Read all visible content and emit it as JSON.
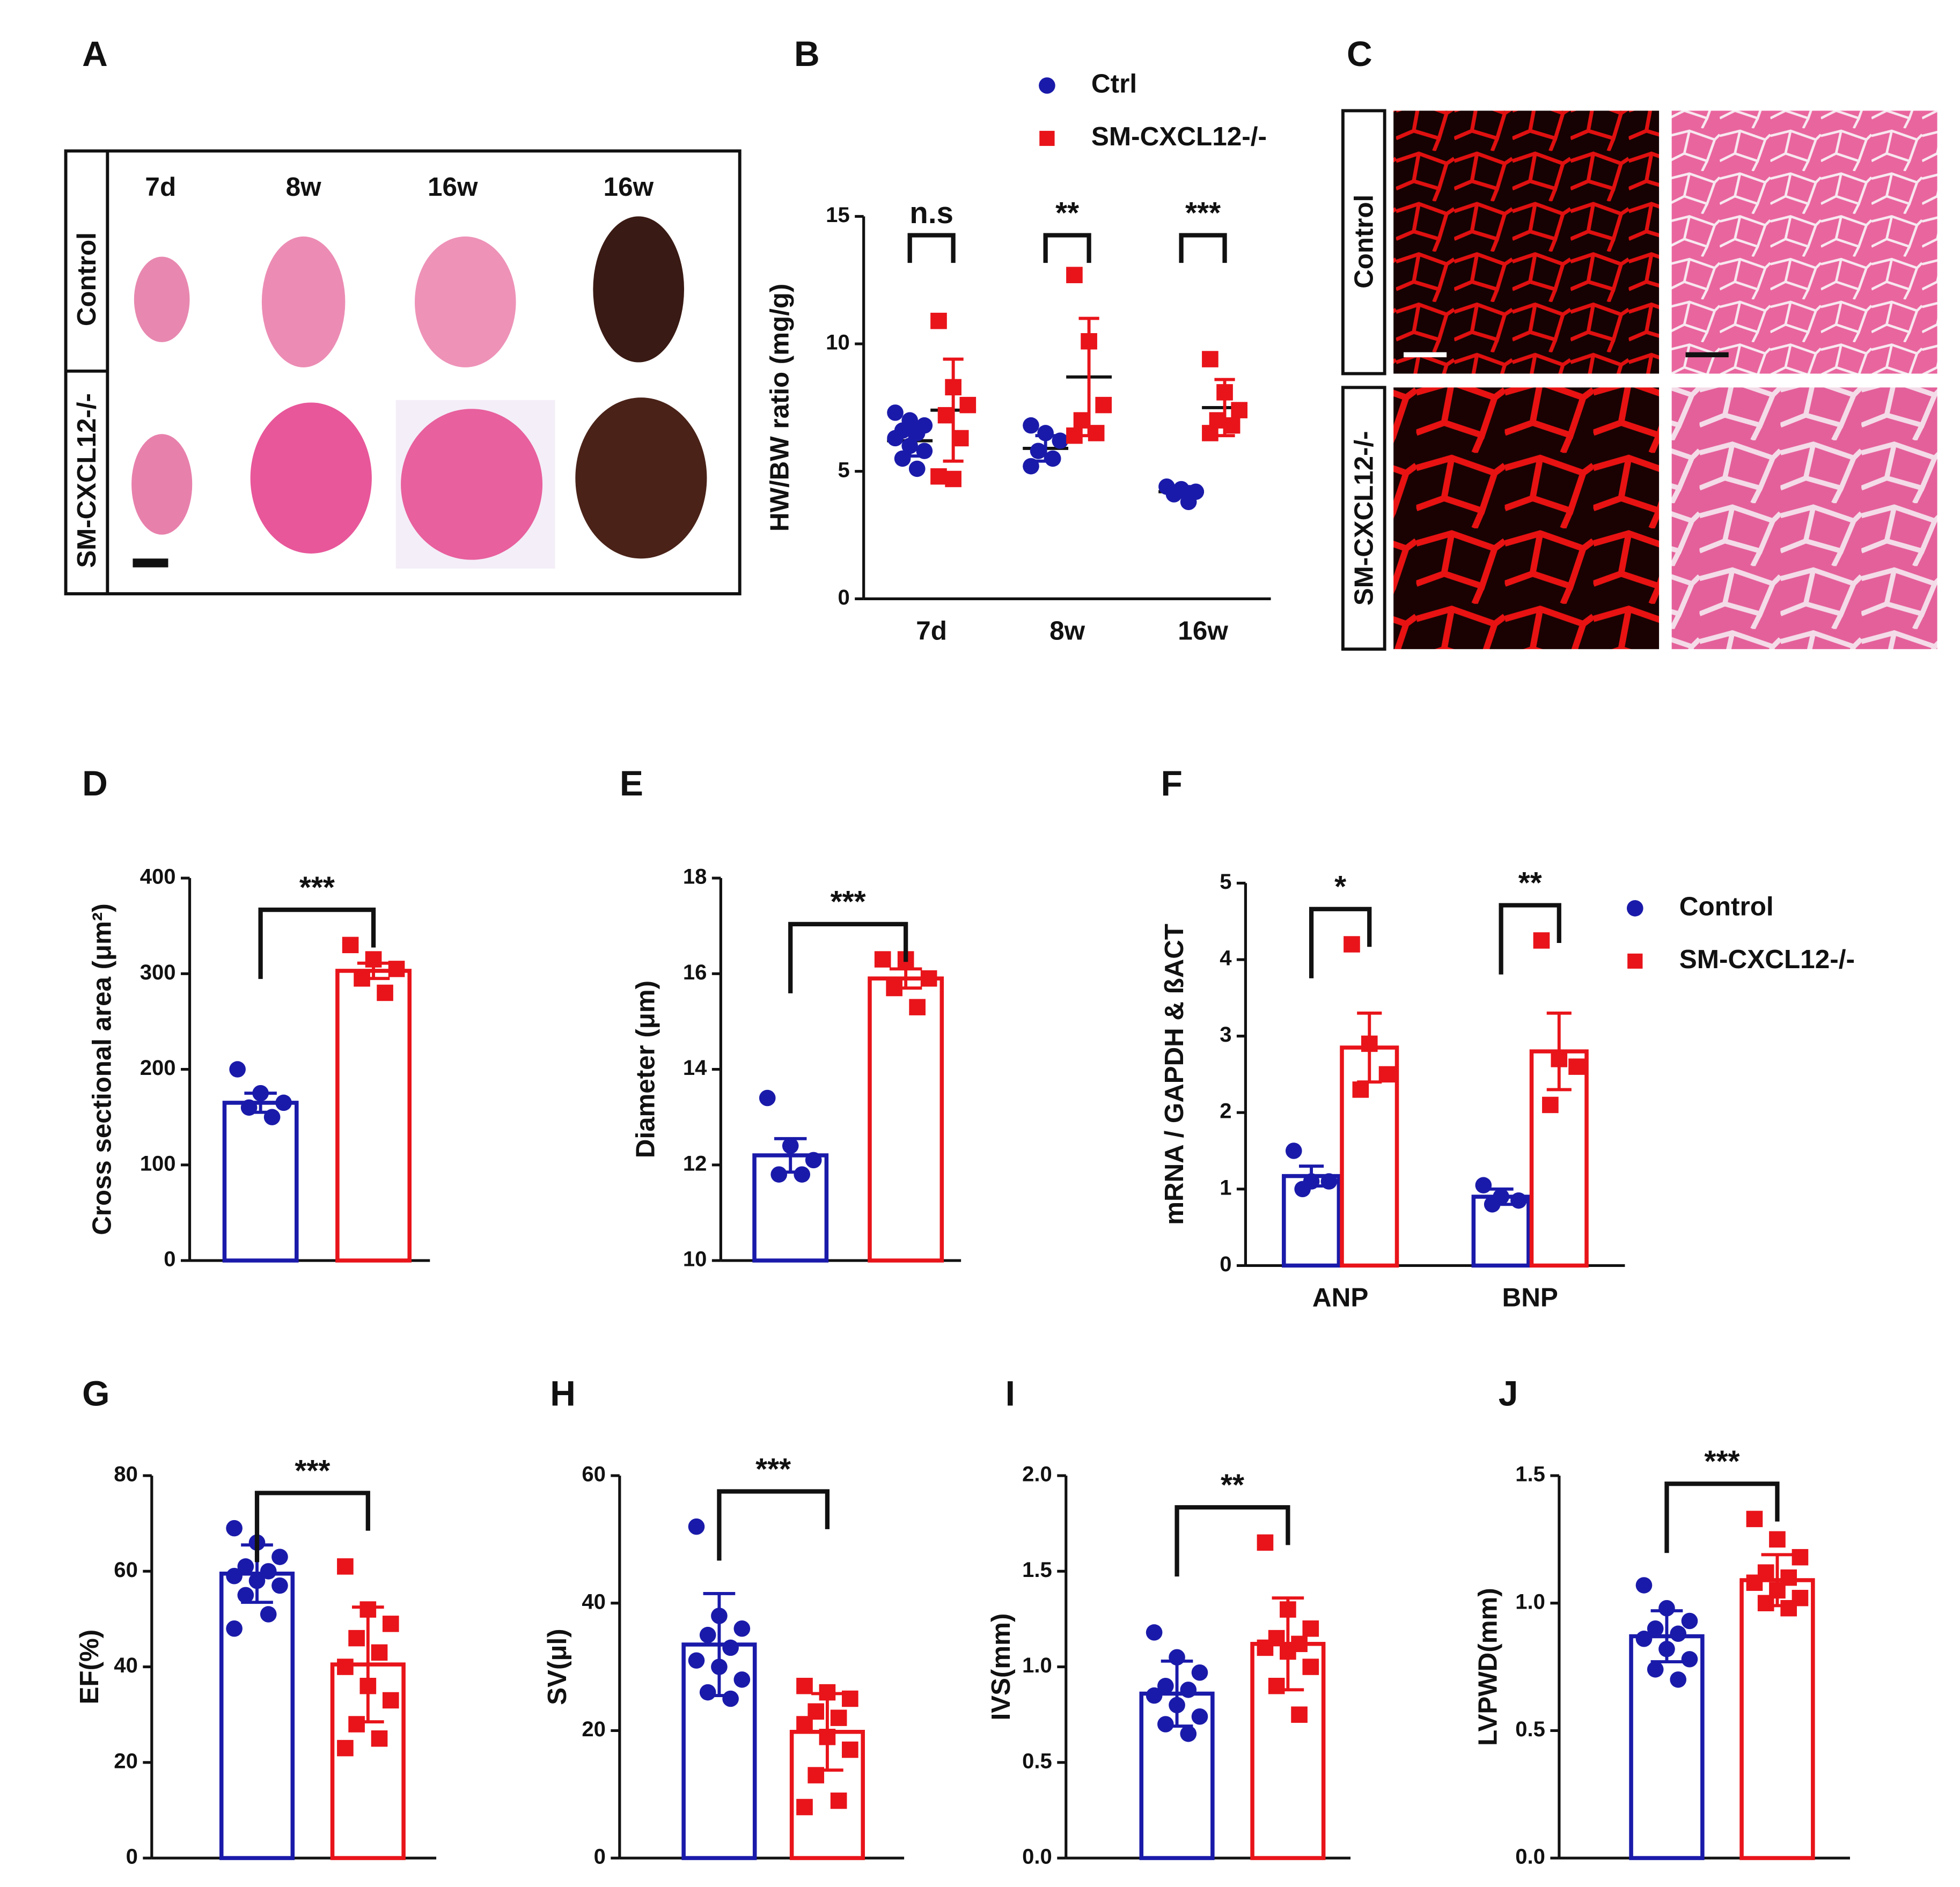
{
  "chart_data": [
    {
      "panel": "B",
      "type": "dot",
      "categories": [
        "7d",
        "8w",
        "16w"
      ],
      "ylabel": "HW/BW ratio (mg/g)",
      "ylim": [
        0,
        15
      ],
      "yticks": [
        0,
        5,
        10,
        15
      ],
      "legend": true,
      "annotations": [
        "n.s",
        "**",
        "***"
      ],
      "series": [
        {
          "name": "Ctrl",
          "color": "#1a1aaa",
          "marker": "circle",
          "values": [
            6.2,
            5.9,
            4.2
          ],
          "errors": [
            0.6,
            0.5,
            0.2
          ],
          "points": [
            [
              7.3,
              7.0,
              6.8,
              6.6,
              6.5,
              6.3,
              6.0,
              5.8,
              5.5,
              5.1
            ],
            [
              6.8,
              6.5,
              6.2,
              5.8,
              5.5,
              5.2
            ],
            [
              4.4,
              4.3,
              4.2,
              4.1,
              3.8
            ]
          ]
        },
        {
          "name": "SM-CXCL12-/-",
          "color": "#e8141a",
          "marker": "square",
          "values": [
            7.4,
            8.7,
            7.5
          ],
          "errors": [
            2.0,
            2.3,
            1.1
          ],
          "points": [
            [
              10.9,
              8.3,
              7.6,
              7.2,
              6.3,
              4.8,
              4.7
            ],
            [
              12.7,
              10.1,
              7.6,
              7.0,
              6.5,
              6.4
            ],
            [
              9.4,
              8.1,
              7.4,
              7.0,
              6.8,
              6.5
            ]
          ]
        }
      ]
    },
    {
      "panel": "D",
      "type": "bar",
      "ylabel": "Cross sectional area (μm²)",
      "ylim": [
        0,
        400
      ],
      "yticks": [
        0,
        100,
        200,
        300,
        400
      ],
      "annotations": [
        "***"
      ],
      "series": [
        {
          "color": "#1a1aaa",
          "marker": "circle",
          "values": [
            165
          ],
          "errors": [
            10
          ],
          "points": [
            [
              200,
              175,
              165,
              160,
              150
            ]
          ]
        },
        {
          "color": "#e8141a",
          "marker": "square",
          "values": [
            303
          ],
          "errors": [
            8
          ],
          "points": [
            [
              330,
              315,
              305,
              295,
              280
            ]
          ]
        }
      ]
    },
    {
      "panel": "E",
      "type": "bar",
      "ylabel": "Diameter (μm)",
      "ylim": [
        10,
        18
      ],
      "yticks": [
        10,
        12,
        14,
        16,
        18
      ],
      "annotations": [
        "***"
      ],
      "series": [
        {
          "color": "#1a1aaa",
          "marker": "circle",
          "values": [
            12.2
          ],
          "errors": [
            0.35
          ],
          "points": [
            [
              13.4,
              12.4,
              12.1,
              11.8,
              11.8
            ]
          ]
        },
        {
          "color": "#e8141a",
          "marker": "square",
          "values": [
            15.9
          ],
          "errors": [
            0.2
          ],
          "points": [
            [
              16.3,
              16.3,
              15.9,
              15.7,
              15.3
            ]
          ]
        }
      ]
    },
    {
      "panel": "F",
      "type": "bar",
      "categories": [
        "ANP",
        "BNP"
      ],
      "ylabel": "mRNA / GAPDH & ßACT",
      "ylim": [
        0,
        5
      ],
      "yticks": [
        0,
        1,
        2,
        3,
        4,
        5
      ],
      "legend": true,
      "annotations": [
        "*",
        "**"
      ],
      "series": [
        {
          "name": "Control",
          "color": "#1a1aaa",
          "marker": "circle",
          "values": [
            1.17,
            0.9
          ],
          "errors": [
            0.13,
            0.1
          ],
          "points": [
            [
              1.5,
              1.1,
              1.1,
              1.0
            ],
            [
              1.05,
              0.9,
              0.85,
              0.8
            ]
          ]
        },
        {
          "name": "SM-CXCL12-/-",
          "color": "#e8141a",
          "marker": "square",
          "values": [
            2.85,
            2.8
          ],
          "errors": [
            0.45,
            0.5
          ],
          "points": [
            [
              4.2,
              2.9,
              2.5,
              2.3
            ],
            [
              4.25,
              2.7,
              2.6,
              2.1
            ]
          ]
        }
      ]
    },
    {
      "panel": "G",
      "type": "bar",
      "ylabel": "EF(%)",
      "ylim": [
        0,
        80
      ],
      "yticks": [
        0,
        20,
        40,
        60,
        80
      ],
      "annotations": [
        "***"
      ],
      "series": [
        {
          "color": "#1a1aaa",
          "marker": "circle",
          "values": [
            59.5
          ],
          "errors": [
            6
          ],
          "points": [
            [
              69,
              66,
              63,
              61,
              60,
              59,
              58,
              57,
              55,
              51,
              48
            ]
          ]
        },
        {
          "color": "#e8141a",
          "marker": "square",
          "values": [
            40.5
          ],
          "errors": [
            12
          ],
          "points": [
            [
              61,
              52,
              49,
              46,
              43,
              40,
              36,
              33,
              28,
              25,
              23
            ]
          ]
        }
      ]
    },
    {
      "panel": "H",
      "type": "bar",
      "ylabel": "SV(μl)",
      "ylim": [
        0,
        60
      ],
      "yticks": [
        0,
        20,
        40,
        60
      ],
      "annotations": [
        "***"
      ],
      "series": [
        {
          "color": "#1a1aaa",
          "marker": "circle",
          "values": [
            33.5
          ],
          "errors": [
            8
          ],
          "points": [
            [
              52,
              38,
              36,
              35,
              33,
              31,
              30,
              28,
              26,
              25
            ]
          ]
        },
        {
          "color": "#e8141a",
          "marker": "square",
          "values": [
            19.8
          ],
          "errors": [
            6
          ],
          "points": [
            [
              27,
              26,
              25,
              23,
              22,
              21,
              19,
              17,
              13,
              9,
              8
            ]
          ]
        }
      ]
    },
    {
      "panel": "I",
      "type": "bar",
      "ylabel": "IVS(mm)",
      "ylim": [
        0,
        2
      ],
      "yticks": [
        {
          "value": 0,
          "label": "0.0"
        },
        {
          "value": 0.5,
          "label": "0.5"
        },
        {
          "value": 1,
          "label": "1.0"
        },
        {
          "value": 1.5,
          "label": "1.5"
        },
        {
          "value": 2,
          "label": "2.0"
        }
      ],
      "annotations": [
        "**"
      ],
      "series": [
        {
          "color": "#1a1aaa",
          "marker": "circle",
          "values": [
            0.86
          ],
          "errors": [
            0.17
          ],
          "points": [
            [
              1.18,
              1.05,
              0.97,
              0.9,
              0.88,
              0.85,
              0.8,
              0.74,
              0.7,
              0.65
            ]
          ]
        },
        {
          "color": "#e8141a",
          "marker": "square",
          "values": [
            1.12
          ],
          "errors": [
            0.24
          ],
          "points": [
            [
              1.65,
              1.3,
              1.2,
              1.15,
              1.12,
              1.1,
              1.08,
              1.0,
              0.9,
              0.75
            ]
          ]
        }
      ]
    },
    {
      "panel": "J",
      "type": "bar",
      "ylabel": "LVPWD(mm)",
      "ylim": [
        0,
        1.5
      ],
      "yticks": [
        {
          "value": 0,
          "label": "0.0"
        },
        {
          "value": 0.5,
          "label": "0.5"
        },
        {
          "value": 1,
          "label": "1.0"
        },
        {
          "value": 1.5,
          "label": "1.5"
        }
      ],
      "annotations": [
        "***"
      ],
      "series": [
        {
          "color": "#1a1aaa",
          "marker": "circle",
          "values": [
            0.87
          ],
          "errors": [
            0.1
          ],
          "points": [
            [
              1.07,
              0.98,
              0.93,
              0.9,
              0.88,
              0.86,
              0.82,
              0.78,
              0.74,
              0.7
            ]
          ]
        },
        {
          "color": "#e8141a",
          "marker": "square",
          "values": [
            1.09
          ],
          "errors": [
            0.1
          ],
          "points": [
            [
              1.33,
              1.25,
              1.18,
              1.12,
              1.1,
              1.08,
              1.05,
              1.02,
              1.0,
              0.98
            ]
          ]
        }
      ]
    }
  ],
  "image_panels": [
    {
      "panel": "A",
      "columns": [
        "7d",
        "8w",
        "16w",
        "16w"
      ],
      "rows": [
        "Control",
        "SM-CXCL12-/-"
      ]
    },
    {
      "panel": "C",
      "rows": [
        "Control",
        "SM-CXCL12-/-"
      ]
    }
  ]
}
